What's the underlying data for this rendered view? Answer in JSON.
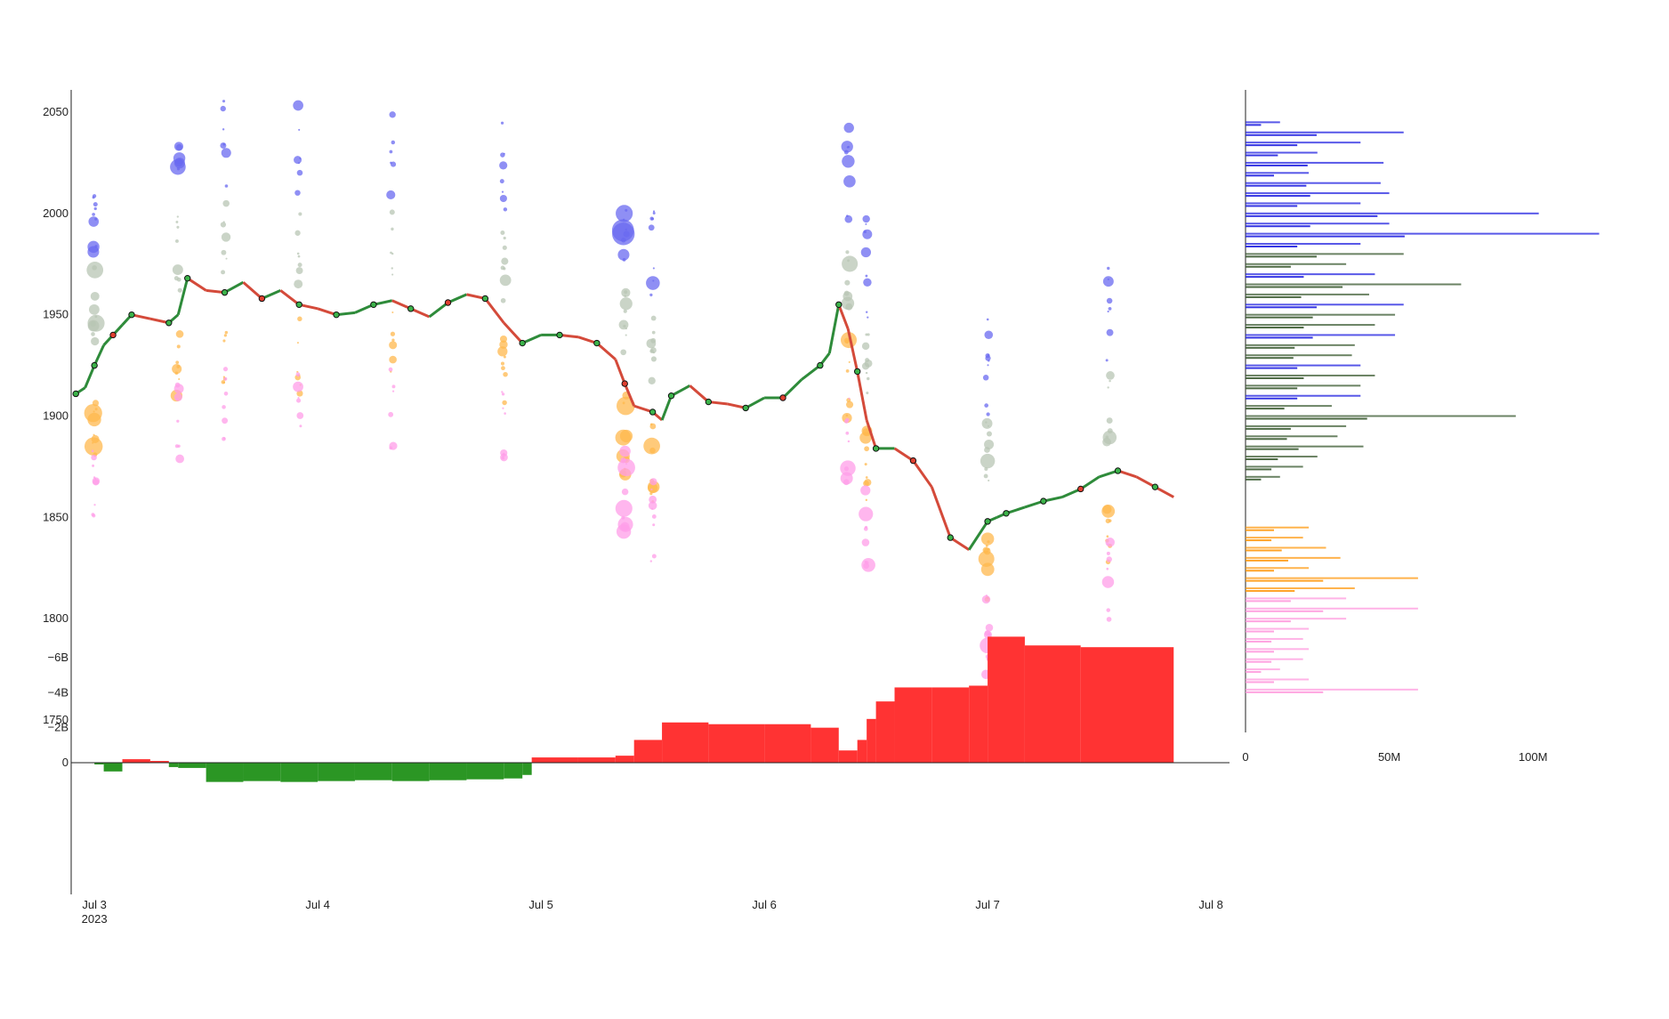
{
  "chart_data": [
    {
      "type": "line",
      "panel": "price",
      "y_ticks": [
        1750,
        1800,
        1850,
        1900,
        1950,
        2000,
        2050
      ],
      "ylim": [
        1744,
        2062
      ],
      "x_ticks": [
        "Jul 3",
        "Jul 4",
        "Jul 5",
        "Jul 6",
        "Jul 7",
        "Jul 8"
      ],
      "x_tick_subtitle": "2023",
      "xlim": [
        "2023-07-02T21:30",
        "2023-07-08T02:00"
      ],
      "colors": {
        "line_up": "#2e8b3a",
        "line_down": "#d44a3a",
        "marker_fill": "#3cb34a",
        "marker_sell_fill": "#e04030",
        "high_cluster": "#6a6af0",
        "upper_cluster": "#b8c6b4",
        "lower_cluster": "#ffb84d",
        "low_cluster": "#ff9ee8"
      },
      "series": [
        {
          "x": [
            "2023-07-02T22:00",
            "2023-07-02T23:00",
            "2023-07-03T00:00",
            "2023-07-03T01:00",
            "2023-07-03T02:00",
            "2023-07-03T03:00",
            "2023-07-03T04:00",
            "2023-07-03T06:00",
            "2023-07-03T08:00",
            "2023-07-03T09:00",
            "2023-07-03T10:00",
            "2023-07-03T12:00",
            "2023-07-03T14:00",
            "2023-07-03T16:00",
            "2023-07-03T18:00",
            "2023-07-03T20:00",
            "2023-07-03T22:00",
            "2023-07-04T00:00",
            "2023-07-04T02:00",
            "2023-07-04T04:00",
            "2023-07-04T06:00",
            "2023-07-04T08:00",
            "2023-07-04T10:00",
            "2023-07-04T12:00",
            "2023-07-04T14:00",
            "2023-07-04T16:00",
            "2023-07-04T18:00",
            "2023-07-04T20:00",
            "2023-07-04T22:00",
            "2023-07-05T00:00",
            "2023-07-05T02:00",
            "2023-07-05T04:00",
            "2023-07-05T06:00",
            "2023-07-05T08:00",
            "2023-07-05T09:00",
            "2023-07-05T10:00",
            "2023-07-05T12:00",
            "2023-07-05T13:00",
            "2023-07-05T14:00",
            "2023-07-05T16:00",
            "2023-07-05T18:00",
            "2023-07-05T20:00",
            "2023-07-05T22:00",
            "2023-07-06T00:00",
            "2023-07-06T02:00",
            "2023-07-06T04:00",
            "2023-07-06T06:00",
            "2023-07-06T07:00",
            "2023-07-06T08:00",
            "2023-07-06T09:00",
            "2023-07-06T10:00",
            "2023-07-06T11:00",
            "2023-07-06T12:00",
            "2023-07-06T14:00",
            "2023-07-06T16:00",
            "2023-07-06T18:00",
            "2023-07-06T20:00",
            "2023-07-06T22:00",
            "2023-07-07T00:00",
            "2023-07-07T01:00",
            "2023-07-07T02:00",
            "2023-07-07T04:00",
            "2023-07-07T06:00",
            "2023-07-07T08:00",
            "2023-07-07T10:00",
            "2023-07-07T12:00",
            "2023-07-07T14:00",
            "2023-07-07T16:00",
            "2023-07-07T18:00",
            "2023-07-07T20:00"
          ],
          "y": [
            1911,
            1914,
            1925,
            1935,
            1940,
            1945,
            1950,
            1948,
            1946,
            1950,
            1968,
            1962,
            1961,
            1966,
            1958,
            1962,
            1955,
            1953,
            1950,
            1951,
            1955,
            1957,
            1953,
            1949,
            1956,
            1960,
            1958,
            1946,
            1936,
            1940,
            1940,
            1939,
            1936,
            1928,
            1916,
            1905,
            1902,
            1898,
            1910,
            1915,
            1907,
            1906,
            1904,
            1909,
            1909,
            1918,
            1925,
            1931,
            1955,
            1943,
            1922,
            1898,
            1884,
            1884,
            1878,
            1865,
            1840,
            1834,
            1848,
            1850,
            1852,
            1855,
            1858,
            1860,
            1864,
            1870,
            1873,
            1870,
            1865,
            1860
          ]
        }
      ]
    },
    {
      "type": "area",
      "panel": "cumulative-delta",
      "y_ticks": [
        0,
        -2000000000,
        -4000000000,
        -6000000000
      ],
      "y_tick_labels": [
        "0",
        "−2B",
        "−4B",
        "−6B"
      ],
      "ylim": [
        -7500000000,
        1500000000
      ],
      "colors": {
        "positive": "#2b9624",
        "negative": "#ff3333"
      },
      "series": [
        {
          "x": [
            "2023-07-02T21:30",
            "2023-07-03T00:00",
            "2023-07-03T01:00",
            "2023-07-03T03:00",
            "2023-07-03T06:00",
            "2023-07-03T08:00",
            "2023-07-03T09:00",
            "2023-07-03T12:00",
            "2023-07-03T16:00",
            "2023-07-03T20:00",
            "2023-07-04T00:00",
            "2023-07-04T04:00",
            "2023-07-04T08:00",
            "2023-07-04T12:00",
            "2023-07-04T16:00",
            "2023-07-04T20:00",
            "2023-07-04T22:00",
            "2023-07-04T23:00",
            "2023-07-05T04:00",
            "2023-07-05T08:00",
            "2023-07-05T10:00",
            "2023-07-05T13:00",
            "2023-07-05T18:00",
            "2023-07-06T00:00",
            "2023-07-06T05:00",
            "2023-07-06T08:00",
            "2023-07-06T10:00",
            "2023-07-06T11:00",
            "2023-07-06T12:00",
            "2023-07-06T14:00",
            "2023-07-06T18:00",
            "2023-07-06T22:00",
            "2023-07-07T00:00",
            "2023-07-07T04:00",
            "2023-07-07T10:00",
            "2023-07-07T20:00"
          ],
          "y": [
            0,
            100000000,
            500000000,
            -200000000,
            -100000000,
            250000000,
            300000000,
            1100000000,
            1050000000,
            1100000000,
            1050000000,
            1000000000,
            1050000000,
            1000000000,
            950000000,
            900000000,
            700000000,
            -300000000,
            -300000000,
            -400000000,
            -1300000000,
            -2300000000,
            -2200000000,
            -2200000000,
            -2000000000,
            -700000000,
            -1300000000,
            -2500000000,
            -3500000000,
            -4300000000,
            -4300000000,
            -4400000000,
            -7200000000,
            -6700000000,
            -6600000000,
            -6500000000
          ]
        }
      ]
    },
    {
      "type": "bar",
      "orientation": "horizontal",
      "panel": "volume-profile",
      "x_ticks": [
        0,
        50000000,
        100000000
      ],
      "x_tick_labels": [
        "0",
        "50M",
        "100M"
      ],
      "xlim": [
        0,
        125000000
      ],
      "colors": {
        "high": "#2020e0",
        "mid": "#3a5a30",
        "low_orange": "#ff9910",
        "low_pink": "#ff99dd"
      },
      "series": [
        {
          "name_hidden": true,
          "y": [
            2045,
            2040,
            2035,
            2030,
            2025,
            2020,
            2015,
            2010,
            2005,
            2000,
            1995,
            1990,
            1985,
            1980,
            1975,
            1970,
            1965,
            1960,
            1955,
            1950,
            1945,
            1940,
            1935,
            1930,
            1925,
            1920,
            1915,
            1910,
            1905,
            1900,
            1895,
            1890,
            1885,
            1880,
            1875,
            1870,
            1845,
            1840,
            1835,
            1830,
            1825,
            1820,
            1815,
            1810,
            1805,
            1800,
            1795,
            1790,
            1785,
            1780,
            1775,
            1770,
            1765
          ],
          "values": [
            12000000,
            55000000,
            40000000,
            25000000,
            48000000,
            22000000,
            47000000,
            50000000,
            40000000,
            102000000,
            50000000,
            123000000,
            40000000,
            55000000,
            35000000,
            45000000,
            75000000,
            43000000,
            55000000,
            52000000,
            45000000,
            52000000,
            38000000,
            37000000,
            40000000,
            45000000,
            40000000,
            40000000,
            30000000,
            94000000,
            35000000,
            32000000,
            41000000,
            25000000,
            20000000,
            12000000,
            22000000,
            20000000,
            28000000,
            33000000,
            22000000,
            60000000,
            38000000,
            35000000,
            60000000,
            35000000,
            22000000,
            20000000,
            22000000,
            20000000,
            12000000,
            22000000,
            60000000
          ]
        }
      ]
    }
  ]
}
